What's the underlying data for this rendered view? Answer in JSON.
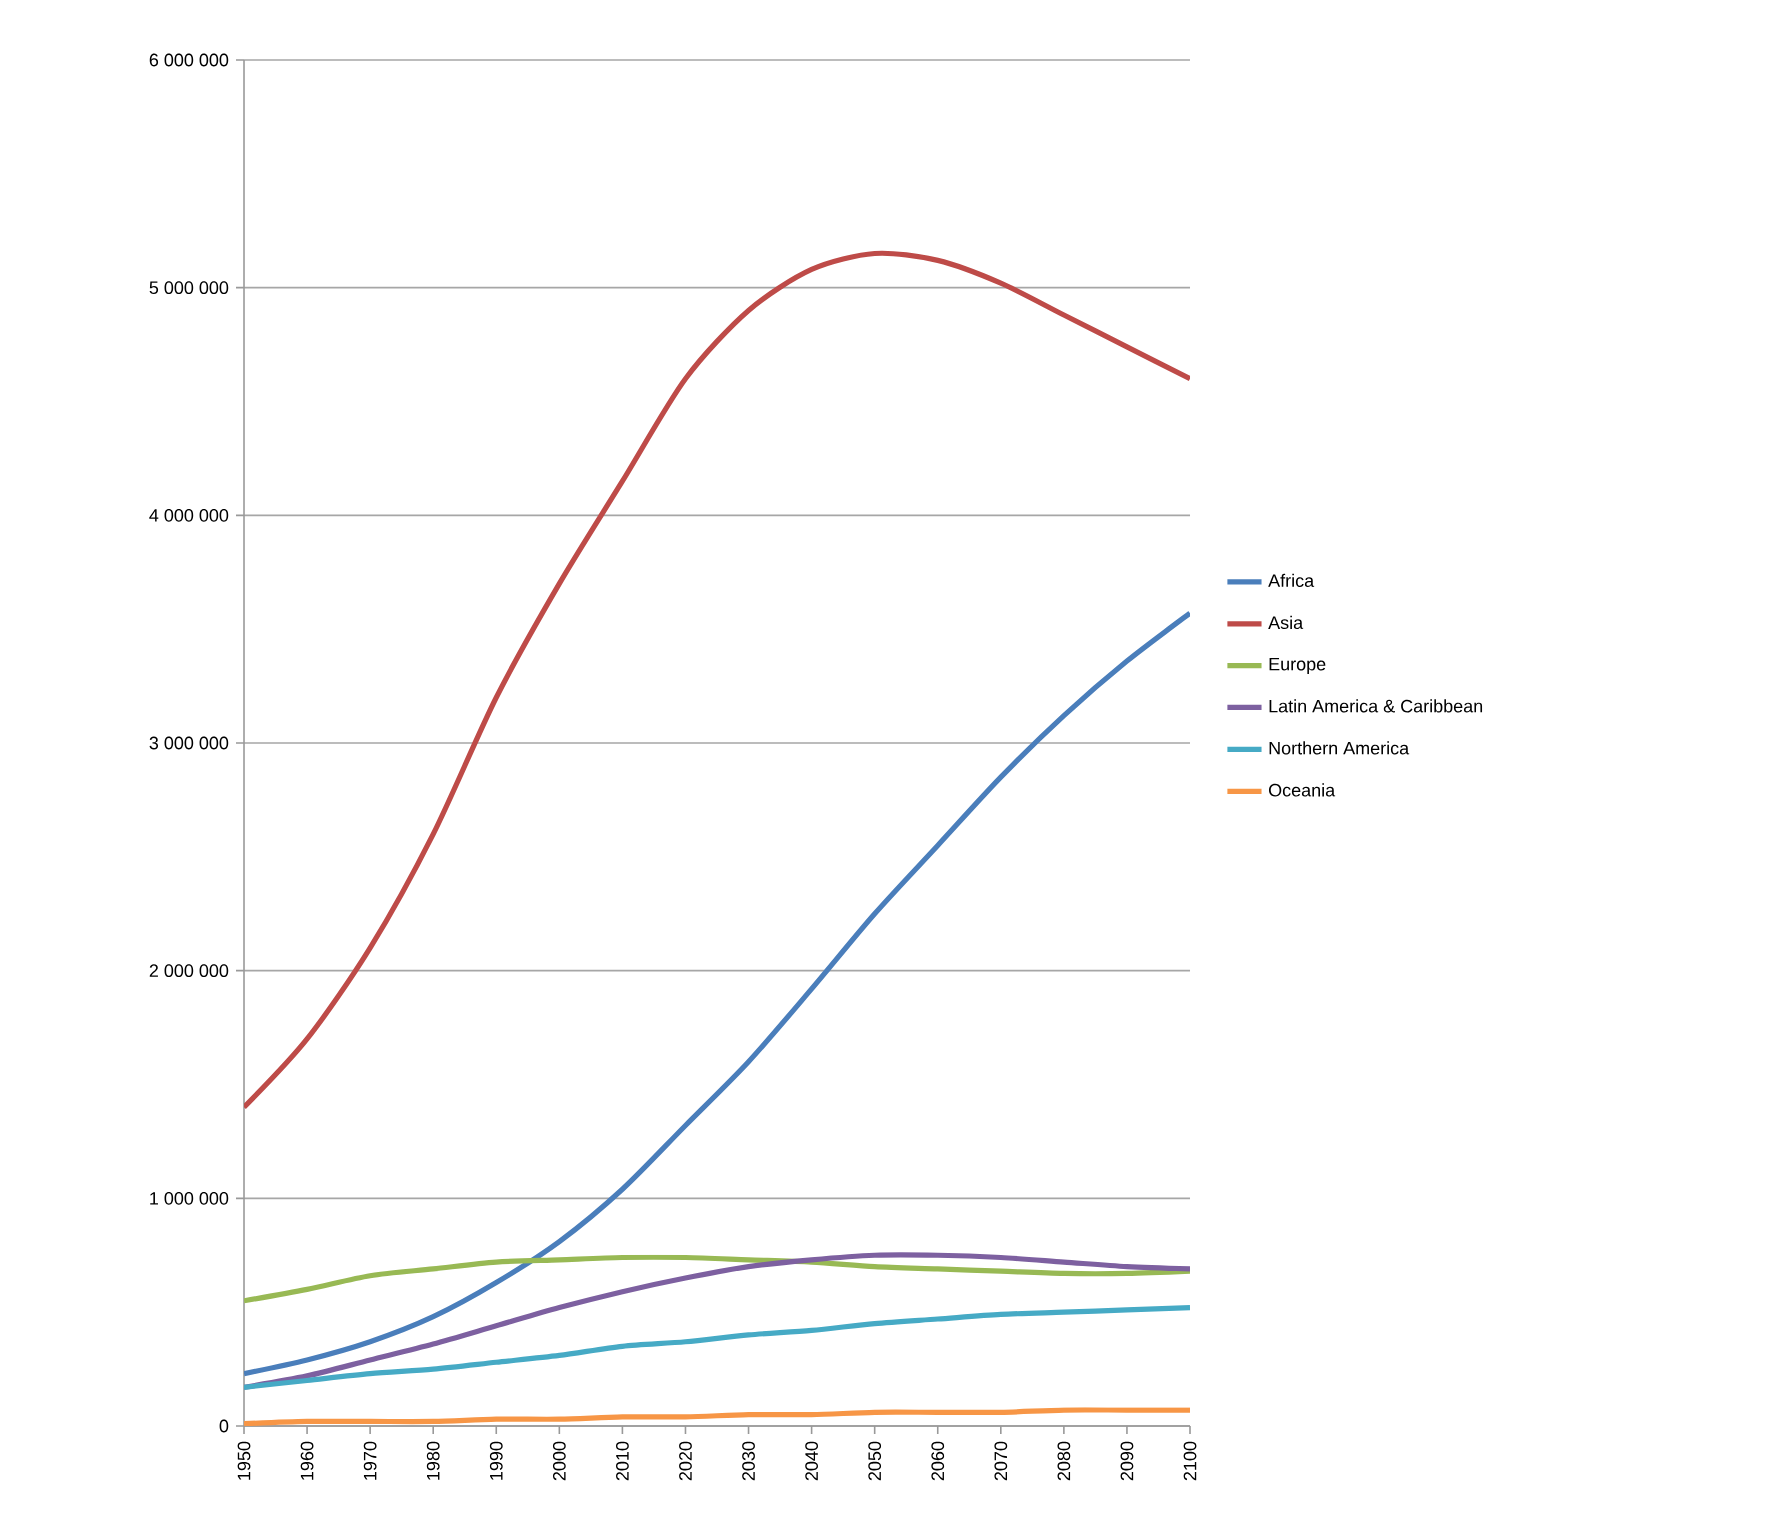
{
  "chart_data": {
    "type": "line",
    "x": [
      1950,
      1960,
      1970,
      1980,
      1990,
      2000,
      2010,
      2020,
      2030,
      2040,
      2050,
      2060,
      2070,
      2080,
      2090,
      2100
    ],
    "series": [
      {
        "name": "Africa",
        "color": "#4a7ebb",
        "values": [
          230000,
          290000,
          370000,
          480000,
          630000,
          810000,
          1040000,
          1320000,
          1600000,
          1920000,
          2250000,
          2550000,
          2850000,
          3120000,
          3360000,
          3570000
        ]
      },
      {
        "name": "Asia",
        "color": "#be4b48",
        "values": [
          1400000,
          1700000,
          2100000,
          2600000,
          3200000,
          3700000,
          4150000,
          4600000,
          4900000,
          5080000,
          5150000,
          5120000,
          5020000,
          4880000,
          4740000,
          4600000
        ]
      },
      {
        "name": "Europe",
        "color": "#98b954",
        "values": [
          550000,
          600000,
          660000,
          690000,
          720000,
          730000,
          740000,
          740000,
          730000,
          720000,
          700000,
          690000,
          680000,
          670000,
          670000,
          680000
        ]
      },
      {
        "name": "Latin America & Caribbean",
        "color": "#7d60a0",
        "values": [
          170000,
          220000,
          290000,
          360000,
          440000,
          520000,
          590000,
          650000,
          700000,
          730000,
          750000,
          750000,
          740000,
          720000,
          700000,
          690000
        ]
      },
      {
        "name": "Northern America",
        "color": "#46aac5",
        "values": [
          170000,
          200000,
          230000,
          250000,
          280000,
          310000,
          350000,
          370000,
          400000,
          420000,
          450000,
          470000,
          490000,
          500000,
          510000,
          520000
        ]
      },
      {
        "name": "Oceania",
        "color": "#f79646",
        "values": [
          10000,
          20000,
          20000,
          20000,
          30000,
          30000,
          40000,
          40000,
          50000,
          50000,
          60000,
          60000,
          60000,
          70000,
          70000,
          70000
        ]
      }
    ],
    "xlim": [
      1950,
      2100
    ],
    "xticks": [
      1950,
      1960,
      1970,
      1980,
      1990,
      2000,
      2010,
      2020,
      2030,
      2040,
      2050,
      2060,
      2070,
      2080,
      2090,
      2100
    ],
    "ylim": [
      0,
      6000000
    ],
    "yticks": [
      {
        "value": 0,
        "label": "0"
      },
      {
        "value": 1000000,
        "label": "1 000 000"
      },
      {
        "value": 2000000,
        "label": "2 000 000"
      },
      {
        "value": 3000000,
        "label": "3 000 000"
      },
      {
        "value": 4000000,
        "label": "4 000 000"
      },
      {
        "value": 5000000,
        "label": "5 000 000"
      },
      {
        "value": 6000000,
        "label": "6 000 000"
      }
    ],
    "grid": "y",
    "legend": "right"
  }
}
